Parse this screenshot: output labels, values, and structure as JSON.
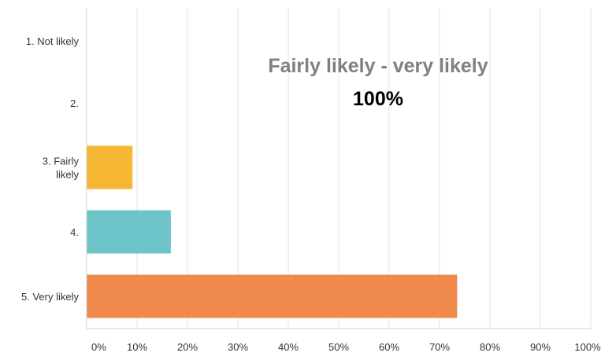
{
  "chart_data": {
    "type": "bar",
    "orientation": "horizontal",
    "categories": [
      [
        "1. Not likely"
      ],
      [
        "2."
      ],
      [
        "3. Fairly",
        "likely"
      ],
      [
        "4."
      ],
      [
        "5. Very likely"
      ]
    ],
    "values": [
      0,
      0,
      9.1,
      16.7,
      73.5
    ],
    "xlim": [
      0,
      100
    ],
    "xticks": [
      0,
      10,
      20,
      30,
      40,
      50,
      60,
      70,
      80,
      90,
      100
    ],
    "xtick_labels": [
      "0%",
      "10%",
      "20%",
      "30%",
      "40%",
      "50%",
      "60%",
      "70%",
      "80%",
      "90%",
      "100%"
    ],
    "grid": "vertical",
    "bar_colors": [
      "#f6b733",
      "#f6b733",
      "#f6b733",
      "#6cc5c8",
      "#ef8a4c"
    ],
    "annotation": {
      "title": "Fairly likely - very likely",
      "value": "100%"
    }
  },
  "colors": {
    "gridline": "#e3e3e3",
    "axis": "#cfcfcf",
    "label_text": "#333333",
    "tick_text": "#333333"
  }
}
